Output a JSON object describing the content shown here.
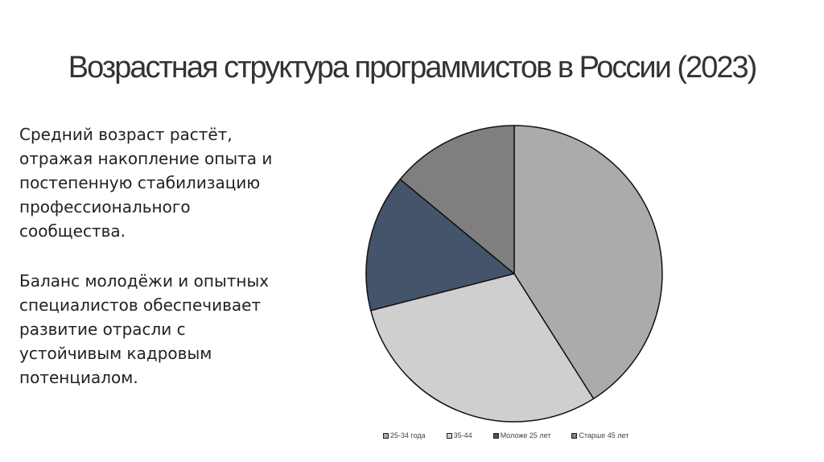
{
  "slide": {
    "title": "Возрастная структура программистов в России (2023)",
    "paragraph_1": "Средний возраст растёт, отражая накопление опыта и постепенную стабилизацию профессионального сообщества.",
    "paragraph_2": "Баланс молодёжи и опытных специалистов обеспечивает развитие отрасли с устойчивым кадровым потенциалом."
  },
  "chart_data": {
    "type": "pie",
    "title": "",
    "categories": [
      "25-34 года",
      "35-44",
      "Моложе 25 лет",
      "Старше 45 лет"
    ],
    "values": [
      41,
      30,
      15,
      14
    ],
    "colors": [
      "#acaaaa",
      "#d0cfd0",
      "#44546a",
      "#7f7f7f"
    ],
    "start_angle_deg": 0,
    "direction": "clockwise",
    "legend_position": "bottom"
  }
}
